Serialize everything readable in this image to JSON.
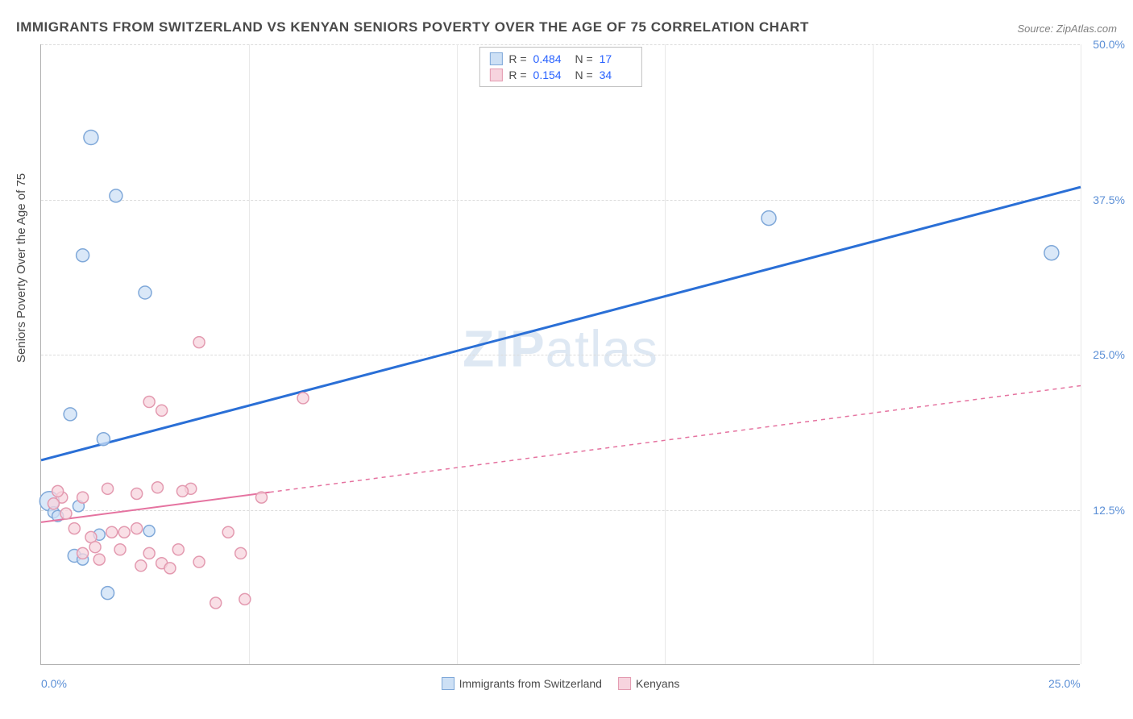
{
  "title": "IMMIGRANTS FROM SWITZERLAND VS KENYAN SENIORS POVERTY OVER THE AGE OF 75 CORRELATION CHART",
  "source_label": "Source: ",
  "source_name": "ZipAtlas.com",
  "watermark_zip": "ZIP",
  "watermark_atlas": "atlas",
  "chart": {
    "type": "scatter",
    "ylabel": "Seniors Poverty Over the Age of 75",
    "xlim": [
      0,
      25
    ],
    "ylim": [
      0,
      50
    ],
    "xticks": [
      {
        "v": 0,
        "label": "0.0%"
      },
      {
        "v": 25,
        "label": "25.0%"
      }
    ],
    "yticks": [
      {
        "v": 12.5,
        "label": "12.5%"
      },
      {
        "v": 25.0,
        "label": "25.0%"
      },
      {
        "v": 37.5,
        "label": "37.5%"
      },
      {
        "v": 50.0,
        "label": "50.0%"
      }
    ],
    "vgrid_positions": [
      5,
      10,
      15,
      20,
      25
    ],
    "background_color": "#ffffff",
    "grid_color": "#dcdcdc",
    "series": [
      {
        "name": "Immigrants from Switzerland",
        "marker_fill": "#cde0f5",
        "marker_stroke": "#7fa8d9",
        "line_color": "#2a6fd6",
        "line_dash": "none",
        "line_width": 3,
        "r_value": "0.484",
        "n_value": "17",
        "trend": {
          "x1": 0,
          "y1": 16.5,
          "x2": 25,
          "y2": 38.5
        },
        "points": [
          {
            "x": 1.2,
            "y": 42.5,
            "r": 9
          },
          {
            "x": 1.8,
            "y": 37.8,
            "r": 8
          },
          {
            "x": 1.0,
            "y": 33.0,
            "r": 8
          },
          {
            "x": 2.5,
            "y": 30.0,
            "r": 8
          },
          {
            "x": 0.7,
            "y": 20.2,
            "r": 8
          },
          {
            "x": 1.5,
            "y": 18.2,
            "r": 8
          },
          {
            "x": 17.5,
            "y": 36.0,
            "r": 9
          },
          {
            "x": 24.3,
            "y": 33.2,
            "r": 9
          },
          {
            "x": 0.2,
            "y": 13.2,
            "r": 12
          },
          {
            "x": 0.3,
            "y": 12.3,
            "r": 7
          },
          {
            "x": 0.8,
            "y": 8.8,
            "r": 8
          },
          {
            "x": 1.0,
            "y": 8.5,
            "r": 7
          },
          {
            "x": 2.6,
            "y": 10.8,
            "r": 7
          },
          {
            "x": 1.4,
            "y": 10.5,
            "r": 7
          },
          {
            "x": 1.6,
            "y": 5.8,
            "r": 8
          },
          {
            "x": 0.9,
            "y": 12.8,
            "r": 7
          },
          {
            "x": 0.4,
            "y": 12.0,
            "r": 7
          }
        ]
      },
      {
        "name": "Kenyans",
        "marker_fill": "#f7d4de",
        "marker_stroke": "#e39ab0",
        "line_color": "#e573a0",
        "line_dash": "5,5",
        "line_width": 2,
        "r_value": "0.154",
        "n_value": "34",
        "trend": {
          "x1": 0,
          "y1": 11.5,
          "x2": 25,
          "y2": 22.5
        },
        "trend_solid_until_x": 5.5,
        "points": [
          {
            "x": 3.8,
            "y": 26.0,
            "r": 7
          },
          {
            "x": 2.6,
            "y": 21.2,
            "r": 7
          },
          {
            "x": 2.9,
            "y": 20.5,
            "r": 7
          },
          {
            "x": 6.3,
            "y": 21.5,
            "r": 7
          },
          {
            "x": 0.5,
            "y": 13.5,
            "r": 7
          },
          {
            "x": 1.0,
            "y": 13.5,
            "r": 7
          },
          {
            "x": 1.6,
            "y": 14.2,
            "r": 7
          },
          {
            "x": 2.3,
            "y": 13.8,
            "r": 7
          },
          {
            "x": 2.8,
            "y": 14.3,
            "r": 7
          },
          {
            "x": 3.6,
            "y": 14.2,
            "r": 7
          },
          {
            "x": 5.3,
            "y": 13.5,
            "r": 7
          },
          {
            "x": 0.8,
            "y": 11.0,
            "r": 7
          },
          {
            "x": 1.2,
            "y": 10.3,
            "r": 7
          },
          {
            "x": 1.7,
            "y": 10.7,
            "r": 7
          },
          {
            "x": 1.9,
            "y": 9.3,
            "r": 7
          },
          {
            "x": 2.0,
            "y": 10.7,
            "r": 7
          },
          {
            "x": 2.3,
            "y": 11.0,
            "r": 7
          },
          {
            "x": 2.4,
            "y": 8.0,
            "r": 7
          },
          {
            "x": 2.9,
            "y": 8.2,
            "r": 7
          },
          {
            "x": 3.1,
            "y": 7.8,
            "r": 7
          },
          {
            "x": 3.3,
            "y": 9.3,
            "r": 7
          },
          {
            "x": 3.8,
            "y": 8.3,
            "r": 7
          },
          {
            "x": 4.5,
            "y": 10.7,
            "r": 7
          },
          {
            "x": 4.8,
            "y": 9.0,
            "r": 7
          },
          {
            "x": 4.2,
            "y": 5.0,
            "r": 7
          },
          {
            "x": 4.9,
            "y": 5.3,
            "r": 7
          },
          {
            "x": 0.3,
            "y": 13.0,
            "r": 7
          },
          {
            "x": 0.6,
            "y": 12.2,
            "r": 7
          },
          {
            "x": 1.3,
            "y": 9.5,
            "r": 7
          },
          {
            "x": 1.4,
            "y": 8.5,
            "r": 7
          },
          {
            "x": 1.0,
            "y": 9.0,
            "r": 7
          },
          {
            "x": 2.6,
            "y": 9.0,
            "r": 7
          },
          {
            "x": 0.4,
            "y": 14.0,
            "r": 7
          },
          {
            "x": 3.4,
            "y": 14.0,
            "r": 7
          }
        ]
      }
    ],
    "legend_bottom": [
      {
        "label": "Immigrants from Switzerland",
        "fill": "#cde0f5",
        "stroke": "#7fa8d9"
      },
      {
        "label": "Kenyans",
        "fill": "#f7d4de",
        "stroke": "#e39ab0"
      }
    ]
  }
}
